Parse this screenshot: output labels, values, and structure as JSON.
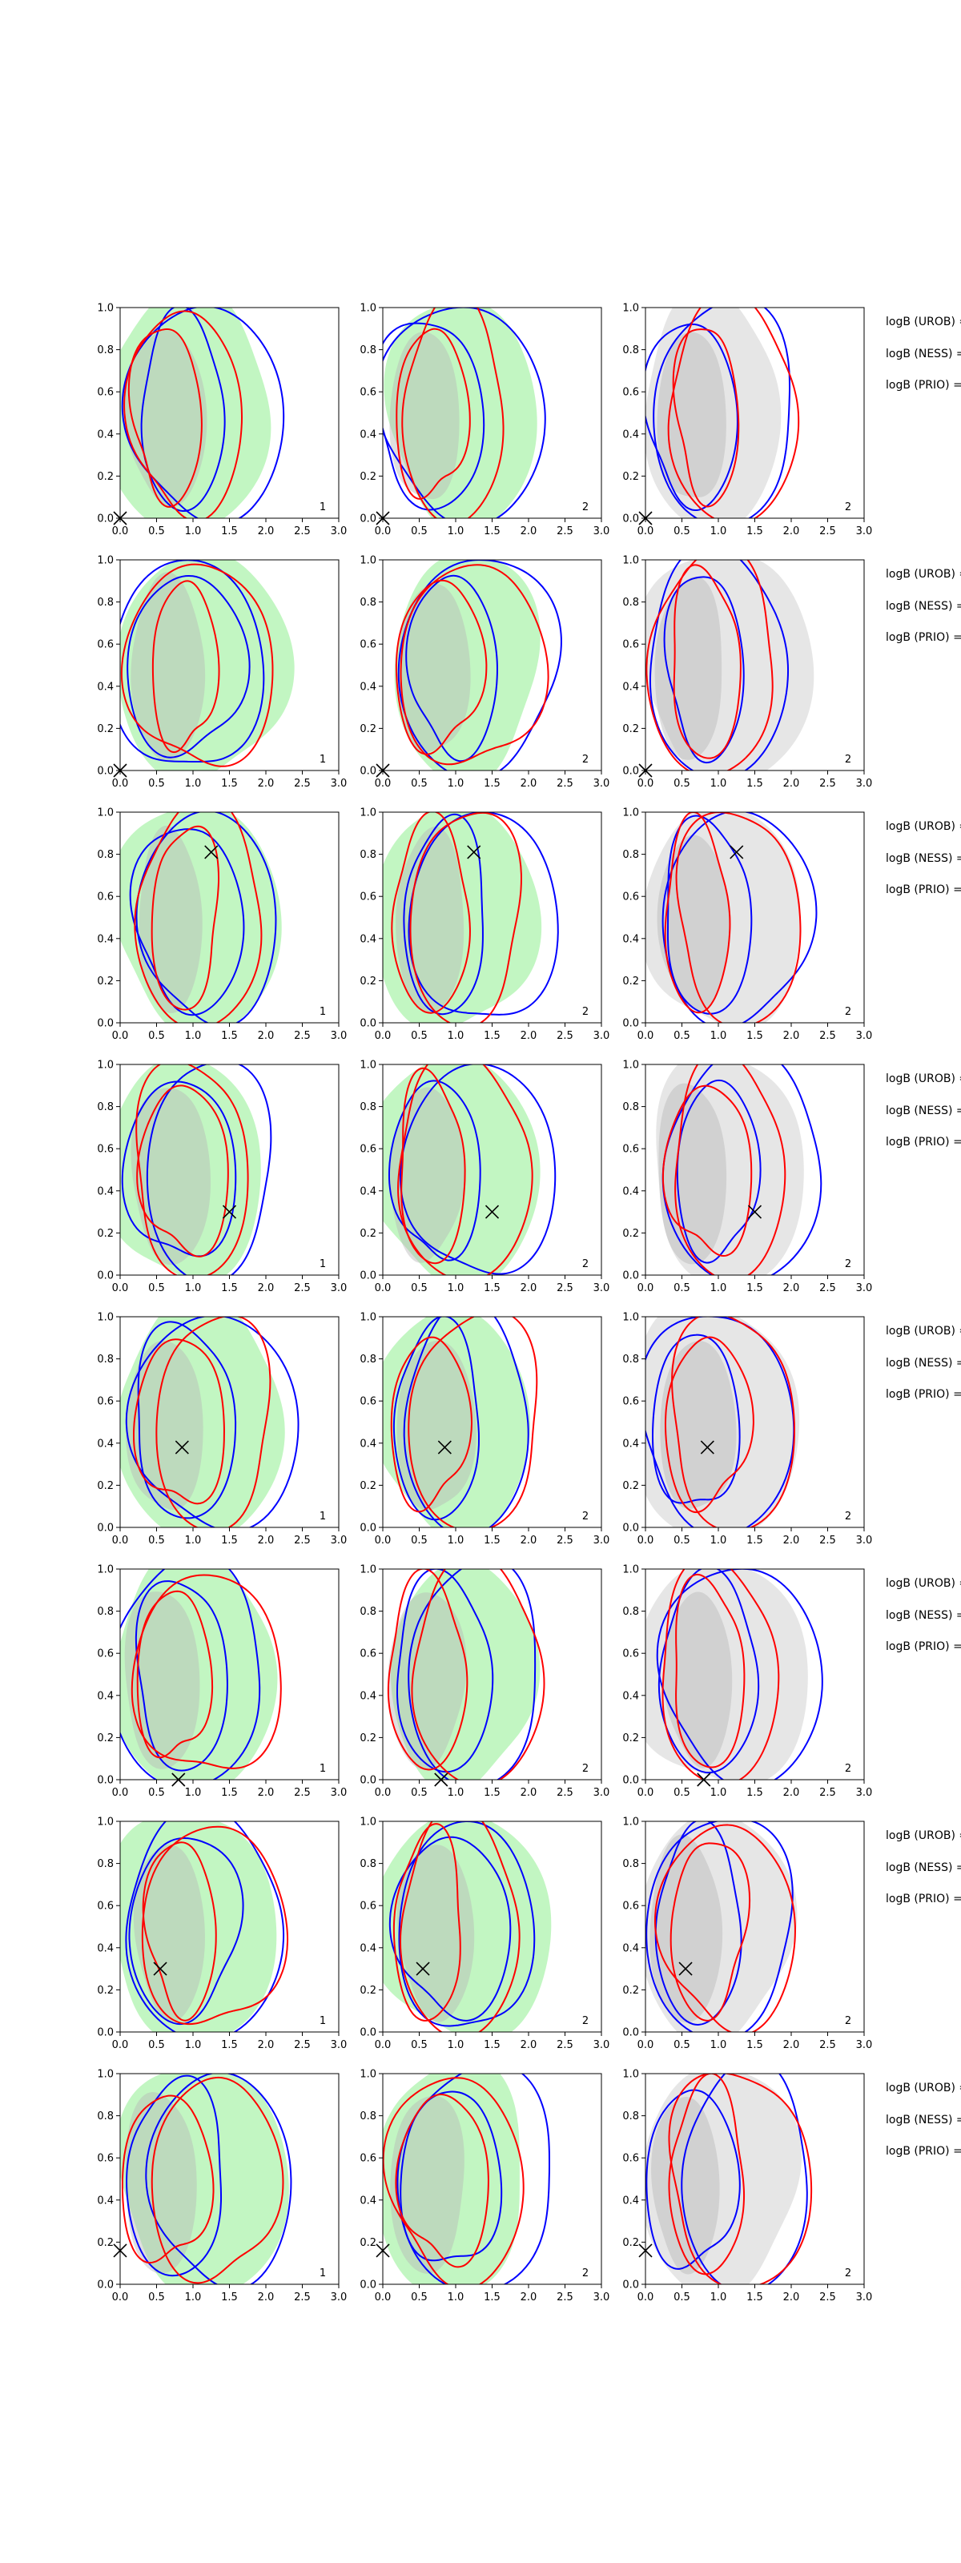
{
  "figure": {
    "columns": 3,
    "rows": 8
  },
  "chart_data": {
    "type": "contour",
    "xlim": [
      0,
      3
    ],
    "ylim": [
      0,
      1
    ],
    "x_ticks": [
      "0.0",
      "0.5",
      "1.0",
      "1.5",
      "2.0",
      "2.5",
      "3.0"
    ],
    "y_ticks": [
      "0.0",
      "0.2",
      "0.4",
      "0.6",
      "0.8",
      "1.0"
    ],
    "grid": false,
    "colors": {
      "uniform_fill": "#90ee90",
      "gray_fill": "#b8b8b8",
      "blue_contour": "#0000ff",
      "red_contour": "#ff0000",
      "marker": "#000000"
    },
    "legend_labels": [
      "logB (UROB) =",
      "logB (NESS) =",
      "logB (PRIO) ="
    ],
    "panel_corner_labels": [
      "1",
      "2",
      "2"
    ],
    "rows": [
      {
        "marker": [
          0.0,
          0.0
        ]
      },
      {
        "marker": [
          0.0,
          0.0
        ]
      },
      {
        "marker": [
          1.25,
          0.81
        ]
      },
      {
        "marker": [
          1.5,
          0.3
        ]
      },
      {
        "marker": [
          0.85,
          0.38
        ]
      },
      {
        "marker": [
          0.8,
          0.0
        ]
      },
      {
        "marker": [
          0.55,
          0.3
        ]
      },
      {
        "marker": [
          0.0,
          0.16
        ]
      }
    ]
  }
}
